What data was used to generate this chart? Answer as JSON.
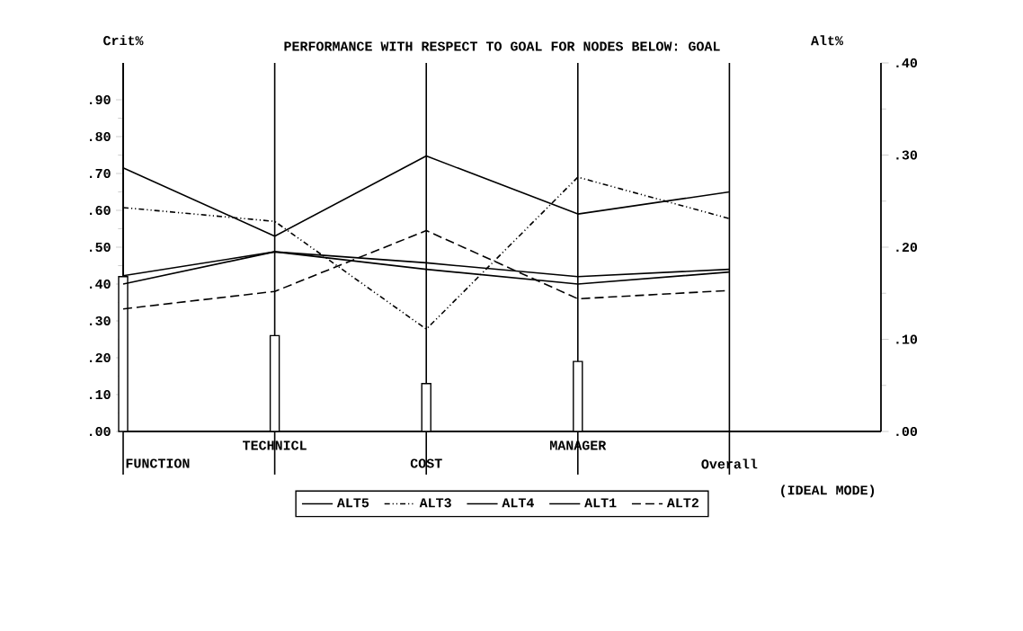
{
  "chart_data": {
    "type": "line",
    "title": "PERFORMANCE WITH RESPECT TO GOAL FOR NODES BELOW: GOAL",
    "ylabel": "Crit%",
    "y2label": "Alt%",
    "annotations": [
      "(IDEAL MODE)"
    ],
    "categories": [
      "FUNCTION",
      "TECHNICL",
      "COST",
      "MANAGER",
      "Overall"
    ],
    "series": [
      {
        "type": "bar",
        "color": "#ffffff",
        "values": [
          0.42,
          0.26,
          0.13,
          0.19,
          null
        ]
      },
      {
        "name": "ALT5",
        "color": "#000000",
        "axis": "y2",
        "line_style": "solid",
        "values": [
          0.286,
          0.212,
          0.299,
          0.236,
          0.26
        ]
      },
      {
        "name": "ALT3",
        "color": "#000000",
        "axis": "y2",
        "line_style": "dashdot",
        "values": [
          0.243,
          0.228,
          0.111,
          0.276,
          0.231
        ]
      },
      {
        "name": "ALT4",
        "color": "#000000",
        "axis": "y2",
        "line_style": "solid",
        "values": [
          0.169,
          0.195,
          0.183,
          0.168,
          0.176
        ]
      },
      {
        "name": "ALT1",
        "color": "#000000",
        "axis": "y2",
        "line_style": "solid",
        "values": [
          0.16,
          0.195,
          0.176,
          0.16,
          0.173
        ]
      },
      {
        "name": "ALT2",
        "color": "#000000",
        "axis": "y2",
        "line_style": "dashed",
        "values": [
          0.133,
          0.152,
          0.218,
          0.144,
          0.153
        ]
      }
    ],
    "ylim": [
      0,
      1
    ],
    "yticks": [
      {
        "value": 0,
        "label": ".00"
      },
      {
        "value": 0.1,
        "label": ".10"
      },
      {
        "value": 0.2,
        "label": ".20"
      },
      {
        "value": 0.3,
        "label": ".30"
      },
      {
        "value": 0.4,
        "label": ".40"
      },
      {
        "value": 0.5,
        "label": ".50"
      },
      {
        "value": 0.6,
        "label": ".60"
      },
      {
        "value": 0.7,
        "label": ".70"
      },
      {
        "value": 0.8,
        "label": ".80"
      },
      {
        "value": 0.9,
        "label": ".90"
      }
    ],
    "y2lim": [
      0,
      0.4
    ],
    "y2ticks": [
      {
        "value": 0,
        "label": ".00"
      },
      {
        "value": 0.1,
        "label": ".10"
      },
      {
        "value": 0.2,
        "label": ".20"
      },
      {
        "value": 0.3,
        "label": ".30"
      },
      {
        "value": 0.4,
        "label": ".40"
      }
    ],
    "grid": "x",
    "legend": "bottom"
  }
}
